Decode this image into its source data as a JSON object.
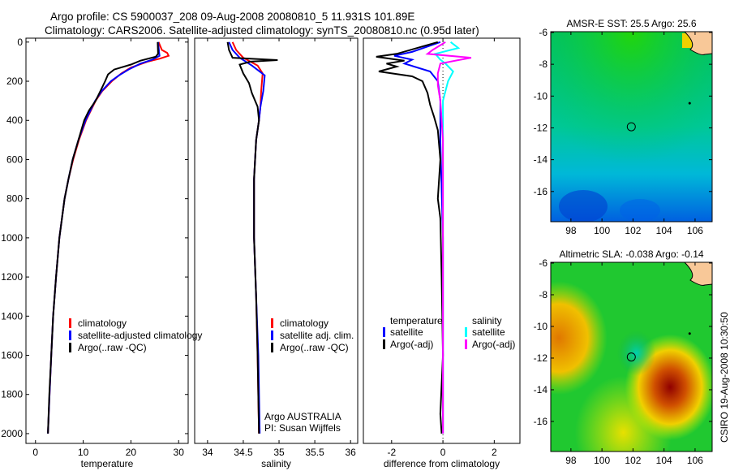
{
  "header": {
    "line1": "Argo profile: CS 5900037_208 09-Aug-2008 20080810_5 11.931S 101.89E",
    "line2": "Climatology: CARS2006. Satellite-adjusted climatology: synTS_20080810.nc (0.95d later)"
  },
  "side_label": "CSIRO 19-Aug-2008 10:30:50",
  "chart_data": [
    {
      "type": "line",
      "id": "temperature",
      "xlabel": "temperature",
      "ylabel": "",
      "xlim": [
        -2,
        32
      ],
      "ylim": [
        2050,
        -20
      ],
      "xticks": [
        0,
        10,
        20,
        30
      ],
      "yticks": [
        0,
        200,
        400,
        600,
        800,
        1000,
        1200,
        1400,
        1600,
        1800,
        2000
      ],
      "legend": [
        "climatology",
        "satellite-adjusted climatology",
        "Argo(..raw -QC)"
      ],
      "series": [
        {
          "name": "climatology",
          "color": "#ff0000",
          "points": [
            [
              0,
              25.8
            ],
            [
              40,
              26.5
            ],
            [
              55,
              27.6
            ],
            [
              70,
              27.9
            ],
            [
              85,
              26
            ],
            [
              100,
              23.5
            ],
            [
              130,
              20
            ],
            [
              160,
              18
            ],
            [
              200,
              16
            ],
            [
              250,
              14
            ],
            [
              300,
              12.6
            ],
            [
              400,
              10.6
            ],
            [
              500,
              9.1
            ],
            [
              600,
              7.9
            ],
            [
              700,
              6.9
            ],
            [
              800,
              6.1
            ],
            [
              1000,
              5.0
            ],
            [
              1200,
              4.3
            ],
            [
              1400,
              3.7
            ],
            [
              1600,
              3.3
            ],
            [
              1800,
              2.95
            ],
            [
              2000,
              2.6
            ]
          ]
        },
        {
          "name": "satellite",
          "color": "#0000ff",
          "points": [
            [
              0,
              25.7
            ],
            [
              50,
              25.9
            ],
            [
              70,
              26
            ],
            [
              90,
              24.5
            ],
            [
              110,
              22
            ],
            [
              140,
              19.5
            ],
            [
              170,
              17.5
            ],
            [
              200,
              15.8
            ],
            [
              250,
              13.9
            ],
            [
              300,
              12.5
            ],
            [
              400,
              10.5
            ],
            [
              500,
              9.0
            ],
            [
              600,
              7.8
            ],
            [
              700,
              6.9
            ],
            [
              800,
              6.1
            ],
            [
              1000,
              5.0
            ],
            [
              1200,
              4.3
            ],
            [
              1400,
              3.7
            ],
            [
              1600,
              3.3
            ],
            [
              1800,
              2.95
            ],
            [
              2000,
              2.6
            ]
          ]
        },
        {
          "name": "argo",
          "color": "#000000",
          "points": [
            [
              0,
              25.6
            ],
            [
              60,
              25.7
            ],
            [
              75,
              25.2
            ],
            [
              95,
              22
            ],
            [
              115,
              20
            ],
            [
              140,
              16.5
            ],
            [
              165,
              15.2
            ],
            [
              200,
              14.6
            ],
            [
              230,
              14
            ],
            [
              260,
              13.4
            ],
            [
              300,
              12.6
            ],
            [
              350,
              11.2
            ],
            [
              400,
              10.2
            ],
            [
              500,
              9.0
            ],
            [
              600,
              7.8
            ],
            [
              700,
              6.9
            ],
            [
              800,
              6.1
            ],
            [
              1000,
              5.0
            ],
            [
              1200,
              4.3
            ],
            [
              1400,
              3.7
            ],
            [
              1600,
              3.3
            ],
            [
              1800,
              2.9
            ],
            [
              2000,
              2.6
            ]
          ]
        }
      ]
    },
    {
      "type": "line",
      "id": "salinity",
      "xlabel": "salinity",
      "ylabel": "",
      "xlim": [
        33.82,
        36.1
      ],
      "ylim": [
        2050,
        -20
      ],
      "xticks": [
        34,
        34.5,
        35,
        35.5,
        36
      ],
      "yticks": [],
      "legend": [
        "climatology",
        "satellite adj. clim.",
        "Argo(..raw -QC)"
      ],
      "annotations": [
        "Argo AUSTRALIA",
        "PI: Susan Wijffels"
      ],
      "series": [
        {
          "name": "climatology",
          "color": "#ff0000",
          "points": [
            [
              0,
              34.35
            ],
            [
              40,
              34.4
            ],
            [
              80,
              34.5
            ],
            [
              120,
              34.7
            ],
            [
              160,
              34.77
            ],
            [
              250,
              34.75
            ],
            [
              330,
              34.74
            ],
            [
              400,
              34.72
            ],
            [
              500,
              34.68
            ],
            [
              700,
              34.65
            ],
            [
              1000,
              34.65
            ],
            [
              1300,
              34.68
            ],
            [
              1600,
              34.7
            ],
            [
              2000,
              34.72
            ]
          ]
        },
        {
          "name": "satellite",
          "color": "#0000ff",
          "points": [
            [
              0,
              34.3
            ],
            [
              40,
              34.35
            ],
            [
              80,
              34.45
            ],
            [
              120,
              34.62
            ],
            [
              170,
              34.8
            ],
            [
              250,
              34.78
            ],
            [
              330,
              34.74
            ],
            [
              400,
              34.72
            ],
            [
              500,
              34.68
            ],
            [
              700,
              34.65
            ],
            [
              1000,
              34.65
            ],
            [
              1300,
              34.68
            ],
            [
              1600,
              34.71
            ],
            [
              2000,
              34.73
            ]
          ]
        },
        {
          "name": "argo",
          "color": "#000000",
          "points": [
            [
              0,
              34.28
            ],
            [
              40,
              34.3
            ],
            [
              80,
              34.35
            ],
            [
              92,
              34.98
            ],
            [
              100,
              34.6
            ],
            [
              115,
              34.45
            ],
            [
              160,
              34.5
            ],
            [
              210,
              34.58
            ],
            [
              260,
              34.62
            ],
            [
              330,
              34.7
            ],
            [
              400,
              34.72
            ],
            [
              500,
              34.68
            ],
            [
              700,
              34.65
            ],
            [
              1000,
              34.65
            ],
            [
              1300,
              34.68
            ],
            [
              1600,
              34.7
            ],
            [
              2000,
              34.72
            ]
          ]
        }
      ]
    },
    {
      "type": "line",
      "id": "difference",
      "xlabel": "difference from climatology",
      "ylabel": "",
      "xlim": [
        -3.1,
        3.0
      ],
      "ylim": [
        2050,
        -20
      ],
      "xticks": [
        -2,
        0,
        2
      ],
      "yticks": [],
      "legend": [
        "temperature",
        "satellite",
        "Argo(-adj)",
        "salinity",
        "satellite",
        "Argo(-adj)"
      ],
      "series": [
        {
          "name": "temperature satellite",
          "color": "#0000ff",
          "points": [
            [
              0,
              -0.1
            ],
            [
              50,
              -1.2
            ],
            [
              70,
              -1.9
            ],
            [
              90,
              -1.2
            ],
            [
              110,
              -1.5
            ],
            [
              150,
              -0.5
            ],
            [
              200,
              -0.2
            ],
            [
              300,
              -0.1
            ],
            [
              500,
              -0.1
            ],
            [
              1000,
              0
            ],
            [
              2000,
              0
            ]
          ]
        },
        {
          "name": "temperature argo",
          "color": "#000000",
          "points": [
            [
              0,
              -0.2
            ],
            [
              60,
              -1.8
            ],
            [
              75,
              -2.6
            ],
            [
              95,
              -1.5
            ],
            [
              110,
              -2.2
            ],
            [
              125,
              -1.8
            ],
            [
              150,
              -2.5
            ],
            [
              175,
              -1.2
            ],
            [
              200,
              -0.8
            ],
            [
              260,
              -0.6
            ],
            [
              320,
              -0.5
            ],
            [
              380,
              -0.35
            ],
            [
              450,
              -0.2
            ],
            [
              600,
              -0.1
            ],
            [
              800,
              -0.2
            ],
            [
              900,
              -0.1
            ],
            [
              1200,
              -0.05
            ],
            [
              1600,
              0
            ],
            [
              1900,
              -0.1
            ],
            [
              2000,
              -0.05
            ]
          ]
        },
        {
          "name": "salinity satellite",
          "color": "#00ffff",
          "points": [
            [
              0,
              0.3
            ],
            [
              30,
              0.6
            ],
            [
              60,
              -0.3
            ],
            [
              90,
              -0.1
            ],
            [
              110,
              0.1
            ],
            [
              150,
              0.4
            ],
            [
              200,
              0.2
            ],
            [
              300,
              0
            ],
            [
              600,
              0
            ],
            [
              1200,
              0
            ],
            [
              2000,
              0
            ]
          ]
        },
        {
          "name": "salinity argo",
          "color": "#ff00ff",
          "points": [
            [
              0,
              0.1
            ],
            [
              40,
              -0.4
            ],
            [
              60,
              -0.6
            ],
            [
              80,
              1.1
            ],
            [
              92,
              0.6
            ],
            [
              110,
              -0.1
            ],
            [
              160,
              -0.2
            ],
            [
              220,
              -0.2
            ],
            [
              300,
              -0.1
            ],
            [
              500,
              0
            ],
            [
              1000,
              0
            ],
            [
              2000,
              0
            ]
          ]
        }
      ]
    },
    {
      "type": "heatmap",
      "id": "sst-map",
      "title": "AMSR-E SST: 25.5 Argo: 25.6",
      "xlim": [
        96.7,
        107.1
      ],
      "ylim": [
        -17.9,
        -5.95
      ],
      "xticks": [
        98,
        100,
        102,
        104,
        106
      ],
      "yticks": [
        -6,
        -8,
        -10,
        -12,
        -14,
        -16
      ],
      "marker": [
        101.89,
        -11.931
      ]
    },
    {
      "type": "heatmap",
      "id": "sla-map",
      "title": "Altimetric SLA: -0.038 Argo: -0.14",
      "xlim": [
        96.7,
        107.1
      ],
      "ylim": [
        -17.9,
        -5.95
      ],
      "xticks": [
        98,
        100,
        102,
        104,
        106
      ],
      "yticks": [
        -6,
        -8,
        -10,
        -12,
        -14,
        -16
      ],
      "marker": [
        101.89,
        -11.931
      ]
    }
  ]
}
